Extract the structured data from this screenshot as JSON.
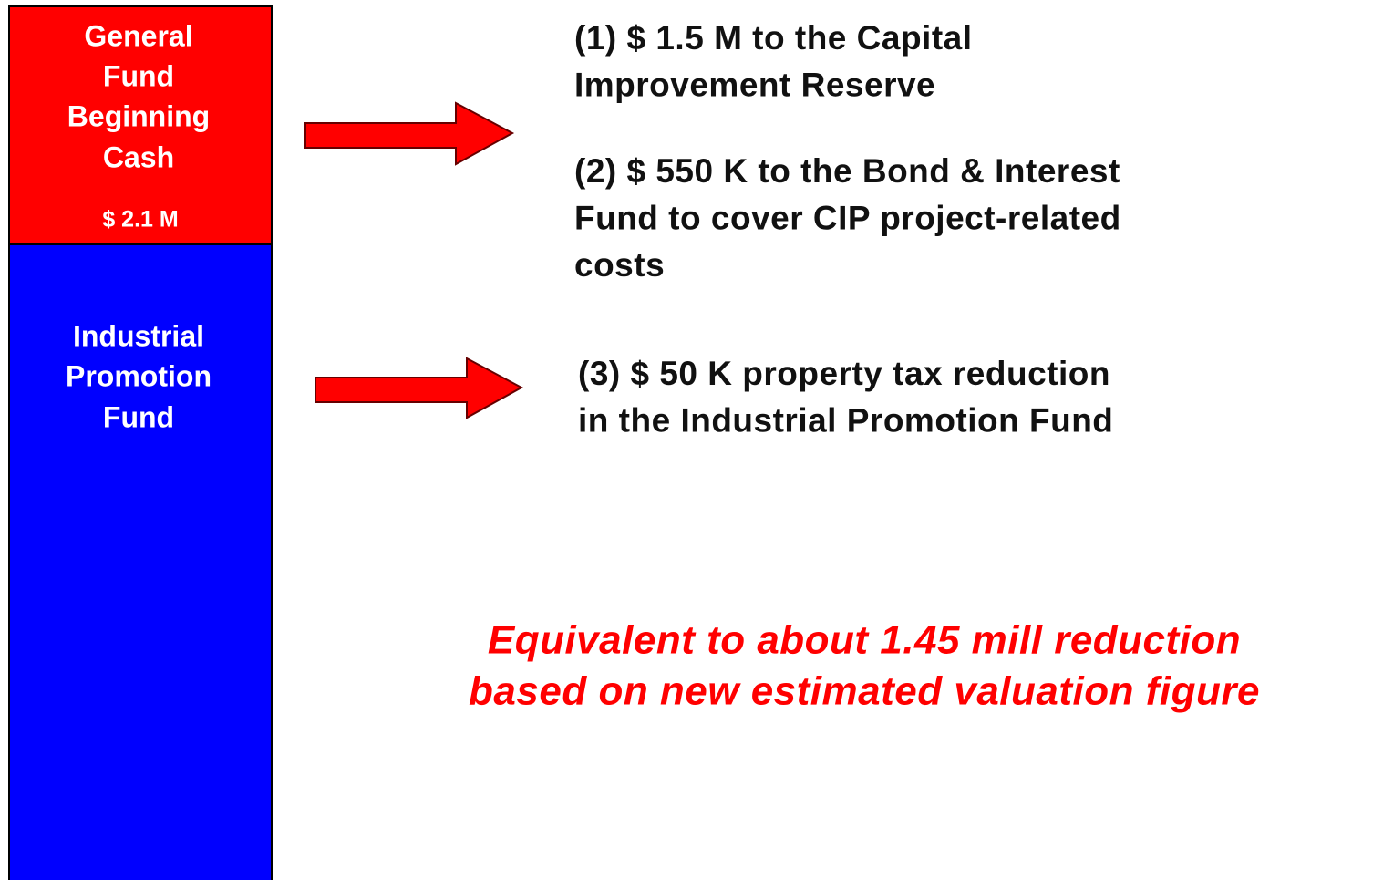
{
  "boxes": [
    {
      "label_lines": [
        "General",
        "Fund",
        "Beginning",
        "Cash"
      ],
      "amount": "$ 2.1 M"
    },
    {
      "label_lines": [
        "Industrial",
        "Promotion",
        "Fund"
      ]
    }
  ],
  "items": [
    {
      "lines": [
        "(1) $ 1.5 M to the Capital",
        "Improvement Reserve"
      ]
    },
    {
      "lines": [
        "(2) $ 550 K to the Bond & Interest",
        "Fund to cover CIP project-related",
        "costs"
      ]
    },
    {
      "lines": [
        "(3) $ 50 K property tax reduction",
        "in the Industrial Promotion Fund"
      ]
    }
  ],
  "note": {
    "lines": [
      "Equivalent to about 1.45 mill reduction",
      "based on new estimated valuation figure"
    ]
  }
}
